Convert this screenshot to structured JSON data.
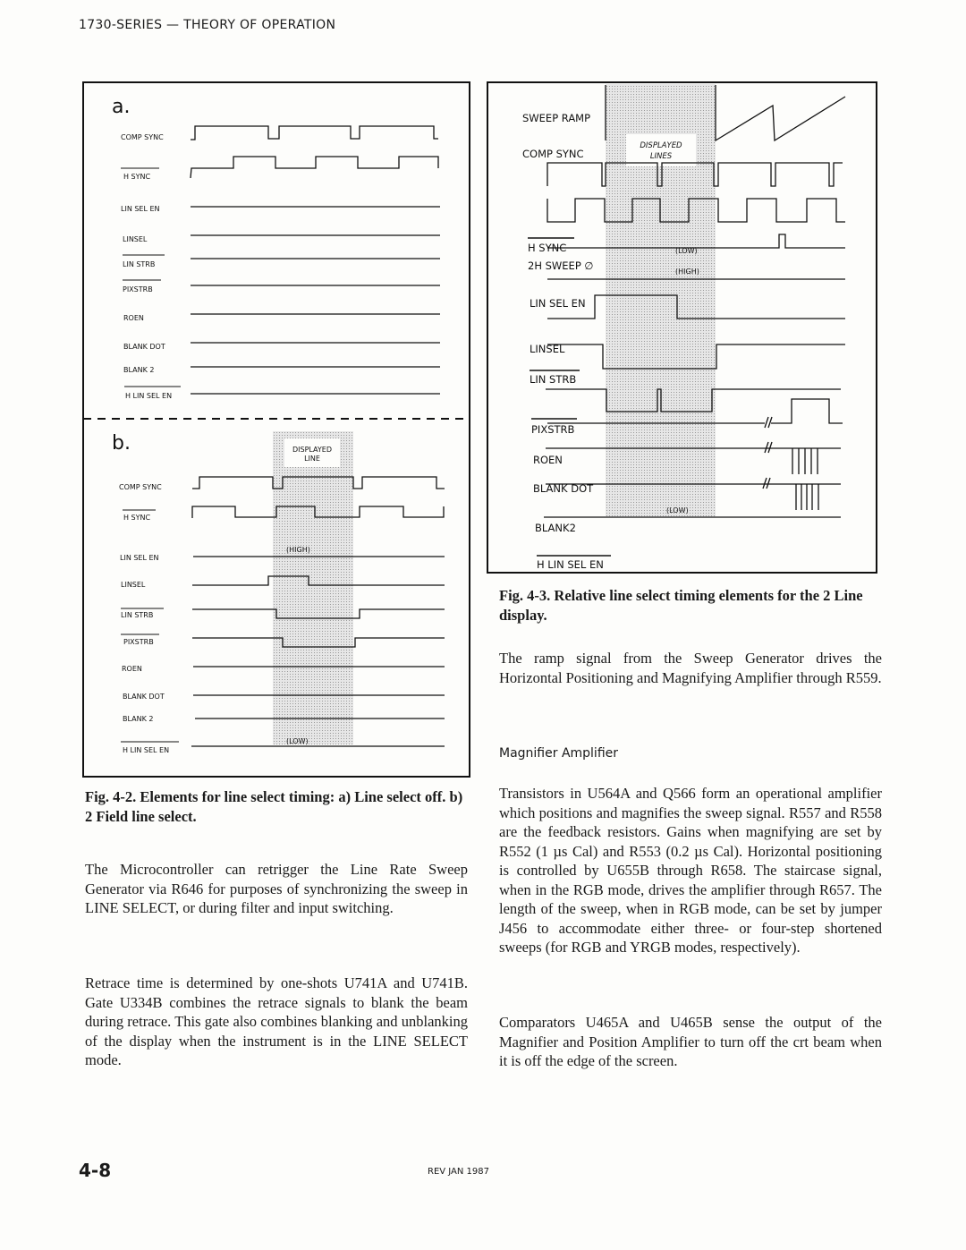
{
  "header": {
    "title": "1730-SERIES — THEORY OF OPERATION"
  },
  "fig42": {
    "panel_a": {
      "label": "a.",
      "signals": [
        "COMP SYNC",
        "H SYNC",
        "LIN SEL  EN",
        "LINSEL",
        "LIN STRB",
        "PIXSTRB",
        "ROEN",
        "BLANK  DOT",
        "BLANK 2",
        "H LIN SEL EN"
      ]
    },
    "panel_b": {
      "label": "b.",
      "shade_label_1": "DISPLAYED",
      "shade_label_2": "LINE",
      "high": "(HIGH)",
      "low": "(LOW)",
      "signals": [
        "COMP SYNC",
        "H SYNC",
        "LIN SEL  EN",
        "LINSEL",
        "LIN STRB",
        "PIXSTRB",
        "ROEN",
        "BLANK  DOT",
        "BLANK 2",
        "H LIN SEL EN"
      ]
    },
    "caption": "Fig. 4-2. Elements for line select timing: a) Line select off. b) 2 Field line select."
  },
  "fig43": {
    "shade_label_1": "DISPLAYED",
    "shade_label_2": "LINES",
    "low": "(LOW)",
    "high": "(HIGH)",
    "low2": "(LOW)",
    "signals": [
      "SWEEP RAMP",
      "COMP SYNC",
      "H SYNC",
      "2H SWEEP ∅",
      "LIN SEL EN",
      "LINSEL",
      "LIN STRB",
      "PIXSTRB",
      "ROEN",
      "BLANK DOT",
      "BLANK2",
      "H LIN SEL EN"
    ],
    "caption": "Fig. 4-3. Relative line select timing elements for the 2 Line display."
  },
  "left": {
    "p1": "The Microcontroller can retrigger the Line Rate Sweep Generator via R646 for purposes of synchronizing the sweep in LINE SELECT, or during filter and input switching.",
    "p2": "Retrace time is determined by one-shots U741A and U741B. Gate U334B combines the retrace signals to blank the beam during retrace. This gate also combines blanking and unblanking of the display when the instrument is in the LINE SELECT mode."
  },
  "right": {
    "p1": "The ramp signal from the Sweep Generator drives the Horizontal Positioning and Magnifying Amplifier through R559.",
    "heading": "Magnifier Amplifier",
    "p2": "Transistors in U564A and Q566 form an operational amplifier which positions and magnifies the sweep signal. R557 and R558 are the feedback resistors. Gains when magnifying are set by R552 (1 µs Cal) and R553 (0.2 µs Cal). Horizontal positioning is controlled by U655B through R658. The staircase signal, when in the RGB mode, drives the amplifier through R657. The length of the sweep, when in RGB mode, can be set by jumper J456 to accommodate either three- or four-step shortened sweeps (for RGB and YRGB modes, respectively).",
    "p3": "Comparators U465A and U465B sense the output of the Magnifier and Position Amplifier to turn off the crt beam when it is off the edge of the screen."
  },
  "footer": {
    "page": "4-8",
    "rev": "REV JAN 1987"
  }
}
